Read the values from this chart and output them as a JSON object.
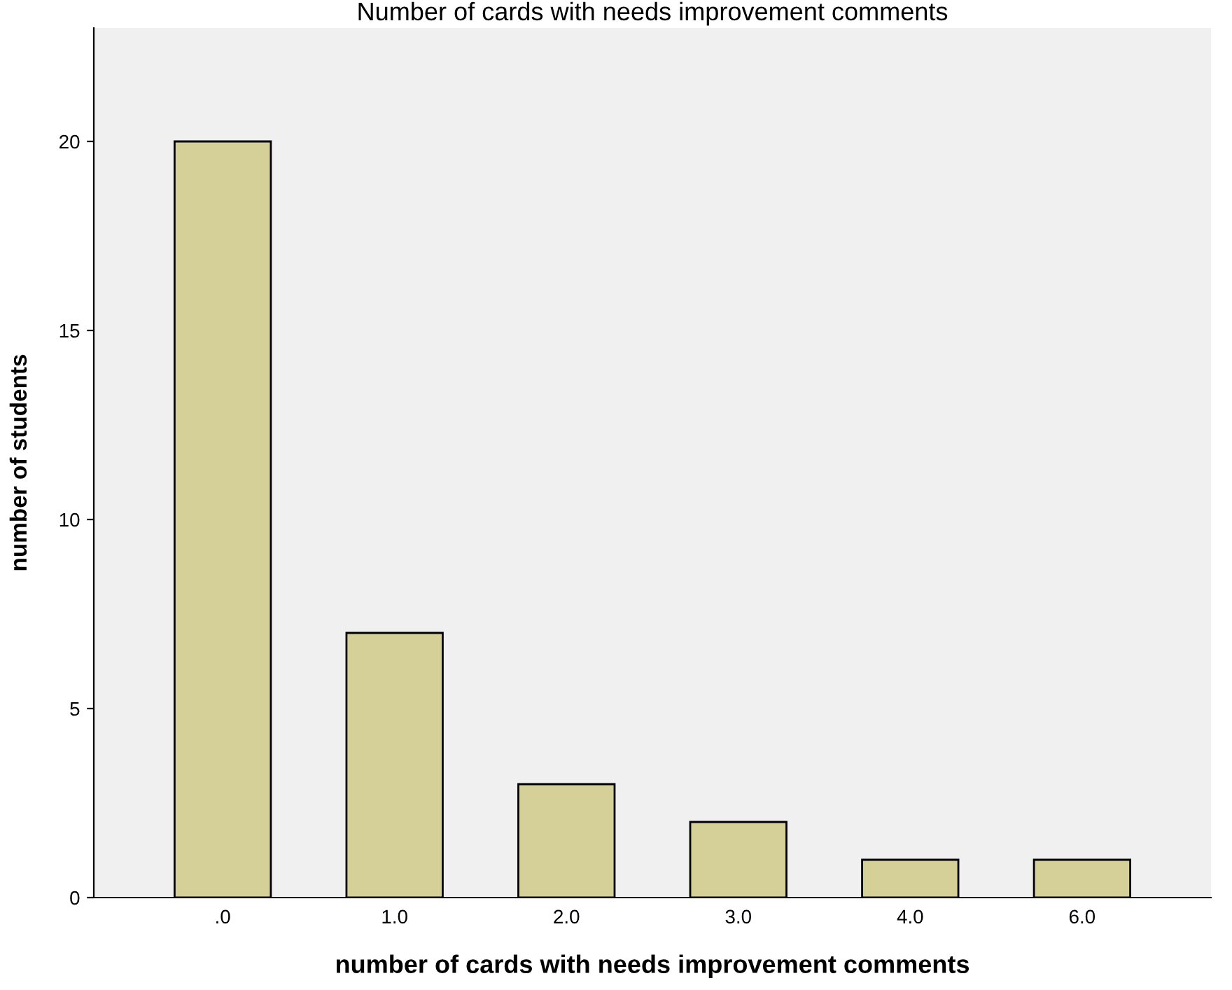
{
  "chart_data": {
    "type": "bar",
    "title": "Number of cards with needs improvement comments",
    "xlabel": "number of cards with needs improvement comments",
    "ylabel": "number of students",
    "categories": [
      ".0",
      "1.0",
      "2.0",
      "3.0",
      "4.0",
      "6.0"
    ],
    "values": [
      20,
      7,
      3,
      2,
      1,
      1
    ],
    "color": "#d5cf98",
    "ylim": [
      0,
      23
    ],
    "yticks": [
      0,
      5,
      10,
      15,
      20
    ],
    "grid": false,
    "legend": false
  }
}
